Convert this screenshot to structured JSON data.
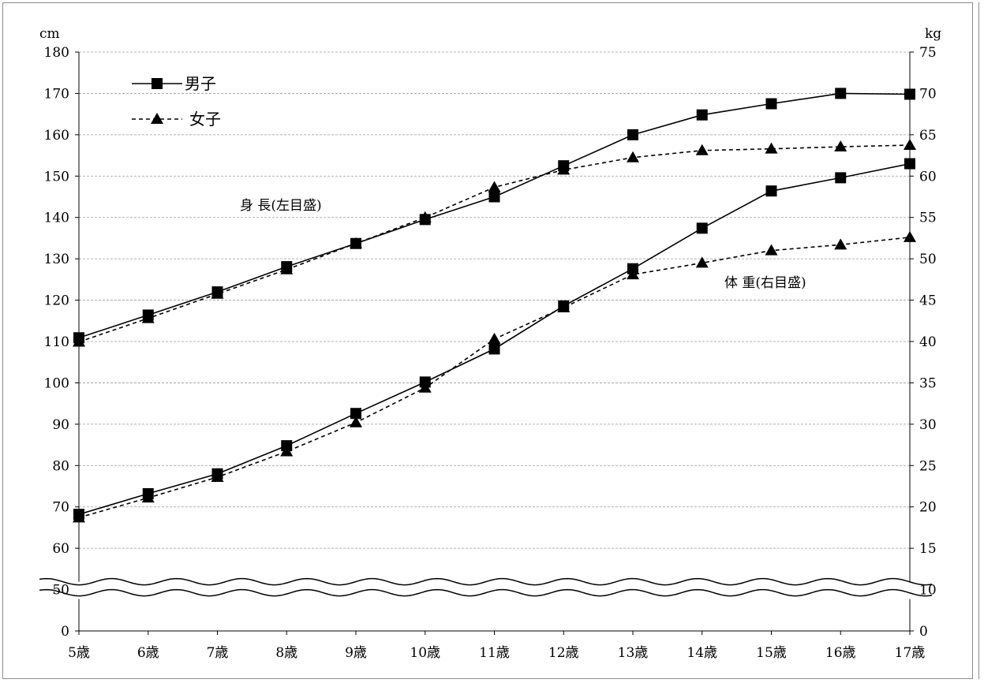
{
  "chart_data": {
    "type": "line",
    "title": "",
    "y_left_unit": "cm",
    "y_right_unit": "kg",
    "x_categories": [
      "5歳",
      "6歳",
      "7歳",
      "8歳",
      "9歳",
      "10歳",
      "11歳",
      "12歳",
      "13歳",
      "14歳",
      "15歳",
      "16歳",
      "17歳"
    ],
    "y_left_ticks": [
      "0",
      "50",
      "60",
      "70",
      "80",
      "90",
      "100",
      "110",
      "120",
      "130",
      "140",
      "150",
      "160",
      "170",
      "180"
    ],
    "y_right_ticks": [
      "0",
      "10",
      "15",
      "20",
      "25",
      "30",
      "35",
      "40",
      "45",
      "50",
      "55",
      "60",
      "65",
      "70",
      "75"
    ],
    "axis_break": "wavy break between 0 and 50 (cm) / 0 and 10 (kg)",
    "grid": "horizontal dashed gridlines",
    "legend": {
      "placement": "top-left",
      "entries": [
        {
          "label": "男子",
          "line": "solid",
          "marker": "square"
        },
        {
          "label": "女子",
          "line": "dashed",
          "marker": "triangle"
        }
      ]
    },
    "annotations": {
      "height": "身 長(左目盛)",
      "weight": "体 重(右目盛)"
    },
    "series": [
      {
        "name": "男子",
        "metric": "身長",
        "axis": "left",
        "unit": "cm",
        "values": [
          110.9,
          116.4,
          122.0,
          128.1,
          133.7,
          139.5,
          145.0,
          152.5,
          160.0,
          164.8,
          167.5,
          170.0,
          169.8
        ]
      },
      {
        "name": "女子",
        "metric": "身長",
        "axis": "left",
        "unit": "cm",
        "values": [
          109.9,
          115.6,
          121.5,
          127.4,
          133.7,
          140.0,
          147.3,
          151.5,
          154.5,
          156.2,
          156.6,
          157.1,
          157.5
        ]
      },
      {
        "name": "男子",
        "metric": "体重",
        "axis": "right",
        "unit": "kg",
        "values": [
          19.1,
          21.6,
          24.0,
          27.4,
          31.3,
          35.1,
          39.1,
          44.3,
          48.8,
          53.7,
          58.2,
          59.8,
          61.5
        ]
      },
      {
        "name": "女子",
        "metric": "体重",
        "axis": "right",
        "unit": "kg",
        "values": [
          18.7,
          21.1,
          23.6,
          26.7,
          30.2,
          34.4,
          40.3,
          44.1,
          48.1,
          49.5,
          51.0,
          51.7,
          52.6
        ]
      }
    ]
  }
}
